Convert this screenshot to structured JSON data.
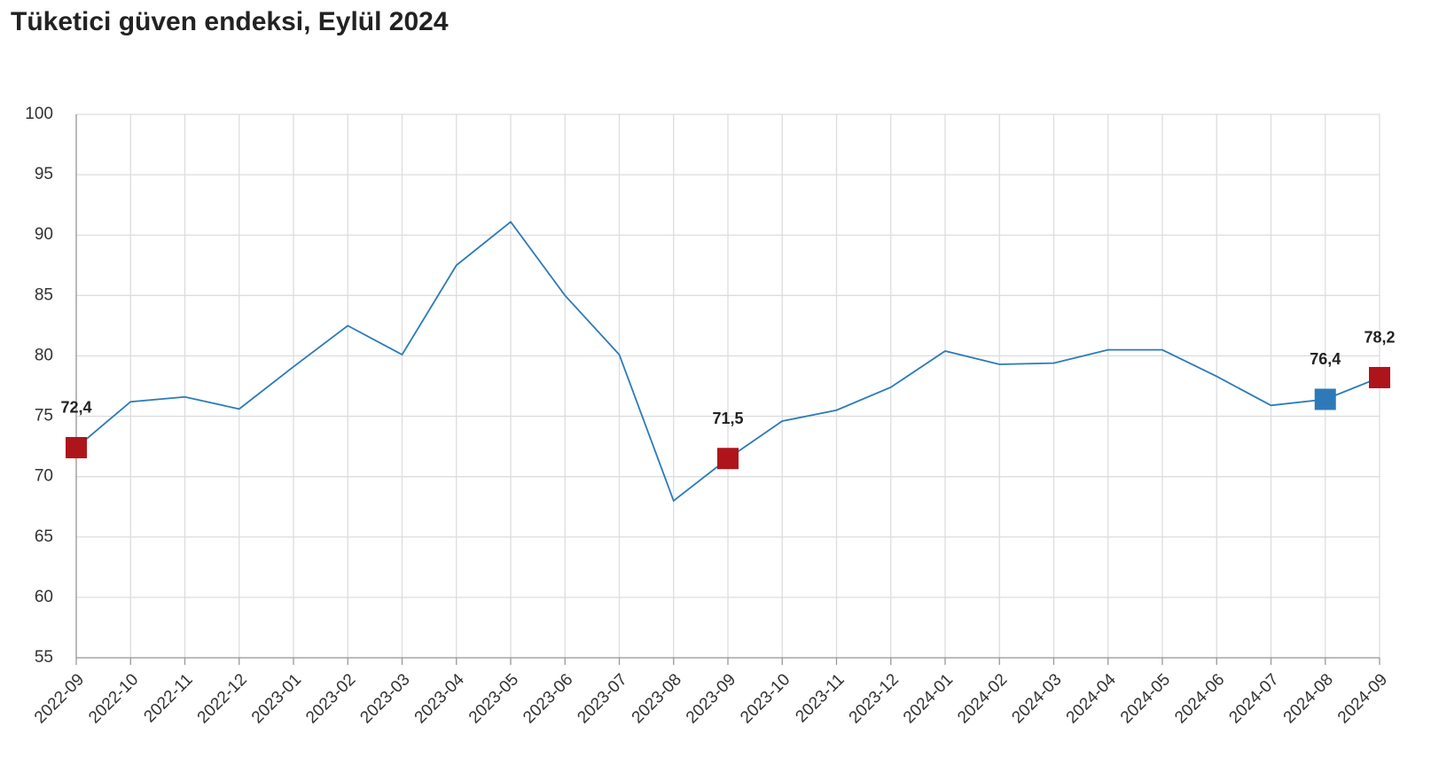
{
  "chart_data": {
    "type": "line",
    "title": "Tüketici güven endeksi, Eylül 2024",
    "categories": [
      "2022-09",
      "2022-10",
      "2022-11",
      "2022-12",
      "2023-01",
      "2023-02",
      "2023-03",
      "2023-04",
      "2023-05",
      "2023-06",
      "2023-07",
      "2023-08",
      "2023-09",
      "2023-10",
      "2023-11",
      "2023-12",
      "2024-01",
      "2024-02",
      "2024-03",
      "2024-04",
      "2024-05",
      "2024-06",
      "2024-07",
      "2024-08",
      "2024-09"
    ],
    "series": [
      {
        "color": "#2b7bba",
        "values": [
          72.4,
          76.2,
          76.6,
          75.6,
          79.1,
          82.5,
          80.1,
          87.5,
          91.1,
          85.0,
          80.1,
          68.0,
          71.5,
          74.6,
          75.5,
          77.4,
          80.4,
          79.3,
          79.4,
          80.5,
          80.5,
          78.3,
          75.9,
          76.4,
          78.2
        ],
        "value_labels": [
          "72,4",
          null,
          null,
          null,
          null,
          null,
          null,
          null,
          null,
          null,
          null,
          null,
          "71,5",
          null,
          null,
          null,
          null,
          null,
          null,
          null,
          null,
          null,
          null,
          "76,4",
          "78,2"
        ],
        "point_colors": [
          "#ae151b",
          null,
          null,
          null,
          null,
          null,
          null,
          null,
          null,
          null,
          null,
          null,
          "#ae151b",
          null,
          null,
          null,
          null,
          null,
          null,
          null,
          null,
          null,
          null,
          "#2e7ab8",
          "#ae151b"
        ]
      }
    ],
    "ylim": [
      55,
      100
    ],
    "yticks": [
      55,
      60,
      65,
      70,
      75,
      80,
      85,
      90,
      95,
      100
    ],
    "grid": true
  }
}
